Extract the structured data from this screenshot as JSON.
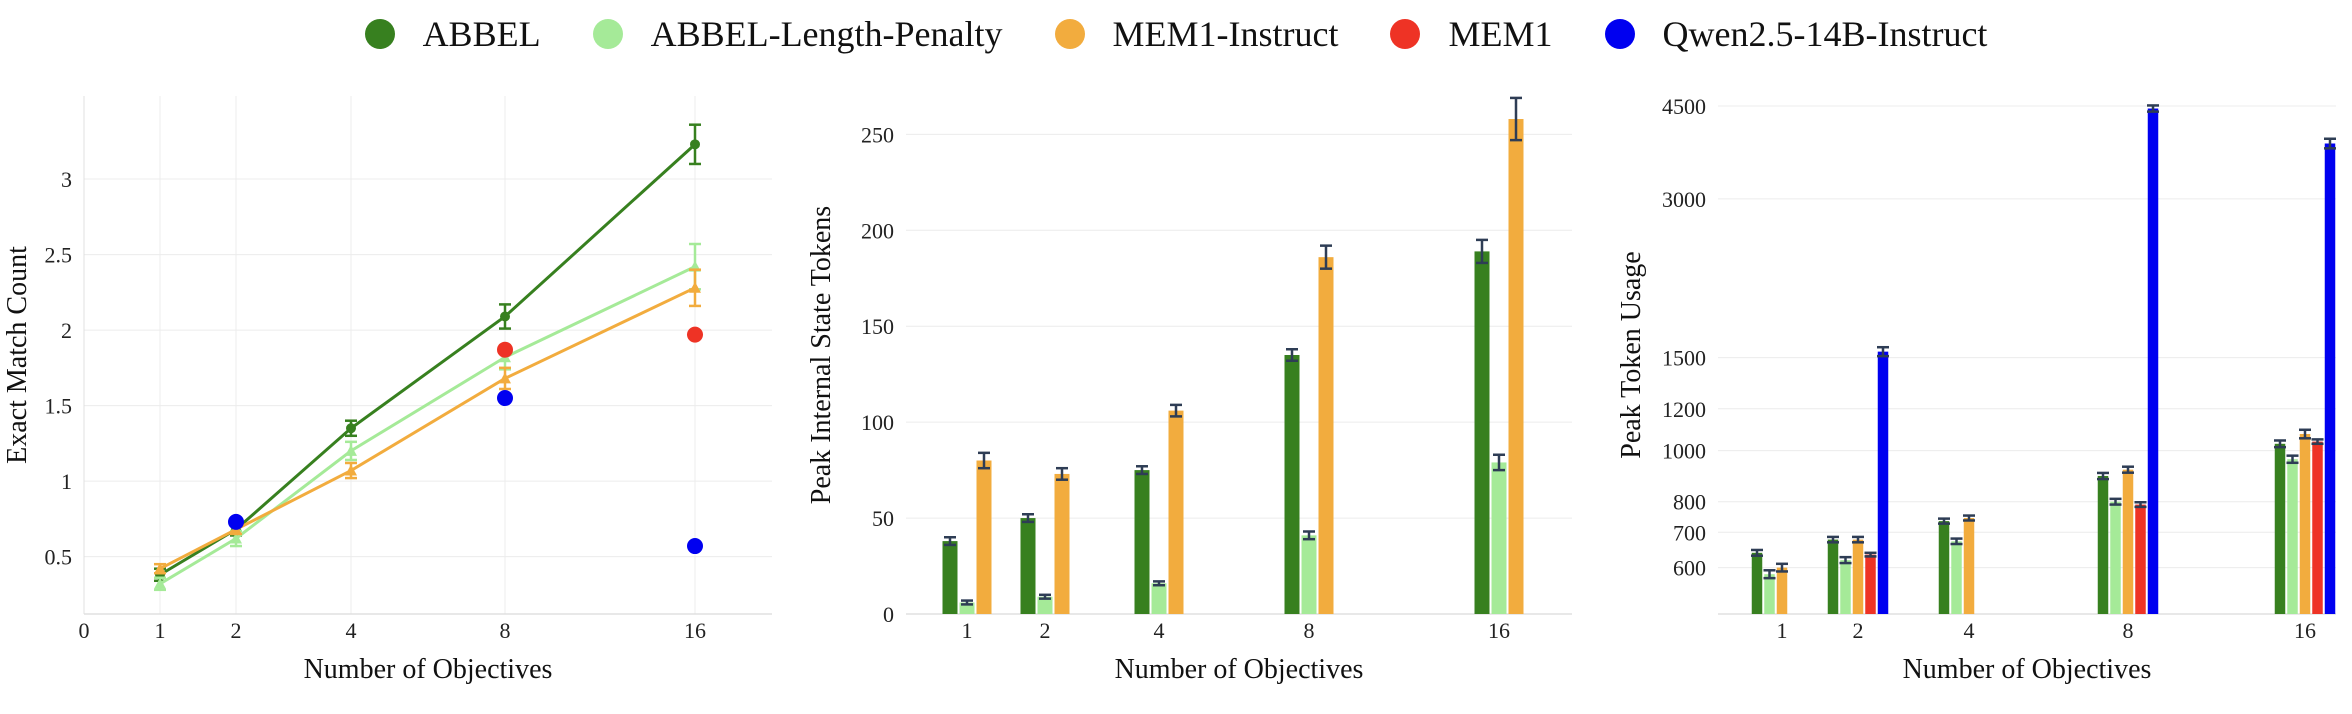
{
  "legend": [
    {
      "name": "ABBEL",
      "color": "#37801f"
    },
    {
      "name": "ABBEL-Length-Penalty",
      "color": "#a5ea98"
    },
    {
      "name": "MEM1-Instruct",
      "color": "#f2ac3e"
    },
    {
      "name": "MEM1",
      "color": "#ee3325"
    },
    {
      "name": "Qwen2.5-14B-Instruct",
      "color": "#0000f0"
    }
  ],
  "chart_data": [
    {
      "type": "line",
      "title": "",
      "xlabel": "Number of Objectives",
      "ylabel": "Exact Match Count",
      "x_ticks": [
        "0",
        "1",
        "2",
        "4",
        "8",
        "16"
      ],
      "y_ticks": [
        "0.5",
        "1",
        "1.5",
        "2",
        "2.5",
        "3"
      ],
      "xlim": [
        0,
        18
      ],
      "ylim": [
        0.12,
        3.55
      ],
      "grid": true,
      "series": [
        {
          "name": "ABBEL",
          "color": "#37801f",
          "marker": "circle",
          "x": [
            1,
            2,
            4,
            8,
            16
          ],
          "y": [
            0.38,
            0.68,
            1.35,
            2.09,
            3.23
          ],
          "err": [
            0.04,
            0.04,
            0.05,
            0.08,
            0.13
          ]
        },
        {
          "name": "ABBEL-Length-Penalty",
          "color": "#a5ea98",
          "marker": "triangle",
          "x": [
            1,
            2,
            4,
            8,
            16
          ],
          "y": [
            0.32,
            0.62,
            1.2,
            1.82,
            2.42
          ],
          "err": [
            0.04,
            0.05,
            0.06,
            0.08,
            0.15
          ]
        },
        {
          "name": "MEM1-Instruct",
          "color": "#f2ac3e",
          "marker": "triangle",
          "x": [
            1,
            2,
            4,
            8,
            16
          ],
          "y": [
            0.42,
            0.68,
            1.07,
            1.68,
            2.28
          ],
          "err": [
            0.03,
            0.03,
            0.05,
            0.07,
            0.12
          ]
        },
        {
          "name": "MEM1",
          "color": "#ee3325",
          "marker": "dot",
          "x": [
            8,
            16
          ],
          "y": [
            1.87,
            1.97
          ],
          "err": [
            0,
            0
          ]
        },
        {
          "name": "Qwen2.5-14B-Instruct",
          "color": "#0000f0",
          "marker": "dot",
          "x": [
            2,
            8,
            16
          ],
          "y": [
            0.73,
            1.55,
            0.57
          ],
          "err": [
            0,
            0,
            0
          ]
        }
      ]
    },
    {
      "type": "bar",
      "title": "",
      "xlabel": "Number of Objectives",
      "ylabel": "Peak Internal State Tokens",
      "x_ticks": [
        "1",
        "2",
        "4",
        "8",
        "16"
      ],
      "x": [
        1,
        2,
        4,
        8,
        16
      ],
      "y_ticks": [
        "0",
        "50",
        "100",
        "150",
        "200",
        "250"
      ],
      "xlim": [
        0,
        18
      ],
      "ylim": [
        0,
        270
      ],
      "grid": true,
      "series": [
        {
          "name": "ABBEL",
          "color": "#37801f",
          "values": [
            38,
            50,
            75,
            135,
            189
          ],
          "err": [
            2,
            2,
            2,
            3,
            6
          ]
        },
        {
          "name": "ABBEL-Length-Penalty",
          "color": "#a5ea98",
          "values": [
            6,
            9,
            16,
            41,
            79
          ],
          "err": [
            1,
            1,
            1,
            2,
            4
          ]
        },
        {
          "name": "MEM1-Instruct",
          "color": "#f2ac3e",
          "values": [
            80,
            73,
            106,
            186,
            258
          ],
          "err": [
            4,
            3,
            3,
            6,
            11
          ]
        }
      ]
    },
    {
      "type": "bar",
      "title": "",
      "xlabel": "Number of Objectives",
      "ylabel": "Peak Token Usage",
      "scale": "log",
      "x_ticks": [
        "1",
        "2",
        "4",
        "8",
        "16"
      ],
      "x": [
        1,
        2,
        4,
        8,
        16
      ],
      "y_ticks": [
        "600",
        "700",
        "800",
        "1000",
        "1200",
        "1500",
        "3000",
        "4500"
      ],
      "xlim": [
        0,
        18
      ],
      "ylim": [
        490,
        4700
      ],
      "grid": true,
      "series": [
        {
          "name": "ABBEL",
          "color": "#37801f",
          "values": [
            640,
            678,
            735,
            895,
            1030
          ],
          "err": [
            8,
            8,
            8,
            12,
            15
          ]
        },
        {
          "name": "ABBEL-Length-Penalty",
          "color": "#a5ea98",
          "values": [
            583,
            620,
            673,
            800,
            963
          ],
          "err": [
            10,
            8,
            8,
            10,
            15
          ]
        },
        {
          "name": "MEM1-Instruct",
          "color": "#f2ac3e",
          "values": [
            600,
            678,
            745,
            920,
            1075
          ],
          "err": [
            10,
            8,
            8,
            12,
            20
          ]
        },
        {
          "name": "MEM1",
          "color": "#ee3325",
          "values": [
            null,
            635,
            null,
            790,
            1040
          ],
          "err": [
            0,
            5,
            0,
            8,
            10
          ]
        },
        {
          "name": "Qwen2.5-14B-Instruct",
          "color": "#0000f0",
          "values": [
            null,
            1540,
            null,
            4450,
            3820
          ],
          "err": [
            0,
            30,
            0,
            60,
            80
          ]
        }
      ]
    }
  ]
}
